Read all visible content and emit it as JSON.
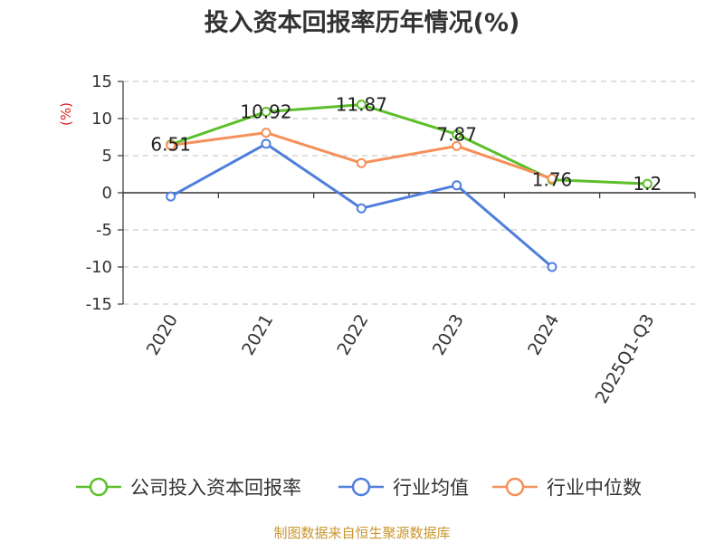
{
  "colors": {
    "company": "#5cbf2a",
    "industry_avg": "#4f7fdc",
    "industry_median": "#f5905a",
    "grid": "#cccccc",
    "axis": "#333333",
    "unit": "#e02020",
    "source": "#c8962e"
  },
  "source_text": "制图数据来自恒生聚源数据库",
  "chart_data": {
    "type": "line",
    "title": "投入资本回报率历年情况(%)",
    "ylabel": "(%)",
    "xlabel": "",
    "ylim": [
      -15,
      15
    ],
    "yticks": [
      15,
      10,
      5,
      0,
      -5,
      -10,
      -15
    ],
    "ytick_labels": [
      "15",
      "10",
      "5",
      "0",
      "-5",
      "-10",
      "-15"
    ],
    "grid": true,
    "legend_position": "bottom",
    "categories": [
      "2020",
      "2021",
      "2022",
      "2023",
      "2024",
      "2025Q1-Q3"
    ],
    "series": [
      {
        "name": "公司投入资本回报率",
        "color_key": "company",
        "values": [
          6.51,
          10.92,
          11.87,
          7.87,
          1.76,
          1.2
        ],
        "labels": [
          "6.51",
          "10.92",
          "11.87",
          "7.87",
          "1.76",
          "1.2"
        ],
        "show_labels": true
      },
      {
        "name": "行业均值",
        "color_key": "industry_avg",
        "values": [
          -0.5,
          6.6,
          -2.1,
          1.0,
          -10.0,
          null
        ],
        "show_labels": false
      },
      {
        "name": "行业中位数",
        "color_key": "industry_median",
        "values": [
          6.4,
          8.1,
          4.0,
          6.3,
          1.9,
          null
        ],
        "show_labels": false
      }
    ]
  }
}
